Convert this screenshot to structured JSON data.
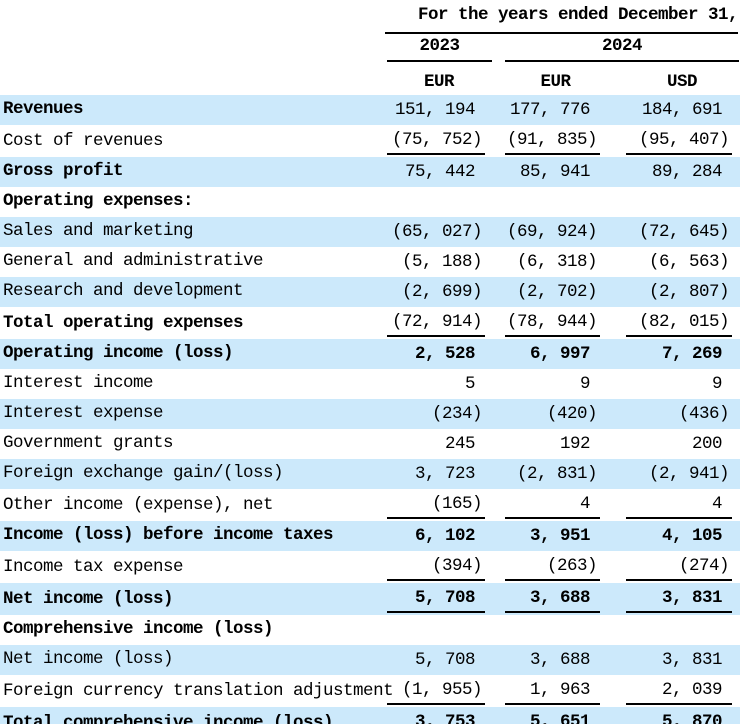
{
  "theme": {
    "stripe_color": "#cce9fb",
    "line_color": "#000000",
    "text_color": "#000000"
  },
  "header": {
    "period": "For the years ended December 31,",
    "years": [
      {
        "label": "2023",
        "span": 1
      },
      {
        "label": "2024",
        "span": 2
      }
    ],
    "currencies": [
      "EUR",
      "EUR",
      "USD"
    ]
  },
  "rows": [
    {
      "label": "Revenues",
      "values": [
        "151, 194",
        "177, 776",
        "184, 691"
      ],
      "bold_label": true,
      "bold_values": false,
      "underline": "none"
    },
    {
      "label": "Cost of revenues",
      "values": [
        "(75, 752)",
        "(91, 835)",
        "(95, 407)"
      ],
      "bold_label": false,
      "bold_values": false,
      "underline": "single"
    },
    {
      "label": "Gross profit",
      "values": [
        "75, 442",
        "85, 941",
        "89, 284"
      ],
      "bold_label": true,
      "bold_values": false,
      "underline": "none"
    },
    {
      "label": "Operating expenses:",
      "values": [
        "",
        "",
        ""
      ],
      "bold_label": true,
      "bold_values": false,
      "underline": "none"
    },
    {
      "label": "Sales and marketing",
      "values": [
        "(65, 027)",
        "(69, 924)",
        "(72, 645)"
      ],
      "bold_label": false,
      "bold_values": false,
      "underline": "none"
    },
    {
      "label": "General and administrative",
      "values": [
        "(5, 188)",
        "(6, 318)",
        "(6, 563)"
      ],
      "bold_label": false,
      "bold_values": false,
      "underline": "none"
    },
    {
      "label": "Research and development",
      "values": [
        "(2, 699)",
        "(2, 702)",
        "(2, 807)"
      ],
      "bold_label": false,
      "bold_values": false,
      "underline": "none"
    },
    {
      "label": "Total operating expenses",
      "values": [
        "(72, 914)",
        "(78, 944)",
        "(82, 015)"
      ],
      "bold_label": true,
      "bold_values": false,
      "underline": "single"
    },
    {
      "label": "Operating income (loss)",
      "values": [
        "2, 528",
        "6, 997",
        "7, 269"
      ],
      "bold_label": true,
      "bold_values": true,
      "underline": "none"
    },
    {
      "label": "Interest income",
      "values": [
        "5",
        "9",
        "9"
      ],
      "bold_label": false,
      "bold_values": false,
      "underline": "none"
    },
    {
      "label": "Interest expense",
      "values": [
        "(234)",
        "(420)",
        "(436)"
      ],
      "bold_label": false,
      "bold_values": false,
      "underline": "none"
    },
    {
      "label": "Government grants",
      "values": [
        "245",
        "192",
        "200"
      ],
      "bold_label": false,
      "bold_values": false,
      "underline": "none"
    },
    {
      "label": "Foreign exchange gain/(loss)",
      "values": [
        "3, 723",
        "(2, 831)",
        "(2, 941)"
      ],
      "bold_label": false,
      "bold_values": false,
      "underline": "none"
    },
    {
      "label": "Other income (expense), net",
      "values": [
        "(165)",
        "4",
        "4"
      ],
      "bold_label": false,
      "bold_values": false,
      "underline": "single"
    },
    {
      "label": "Income (loss) before income taxes",
      "values": [
        "6, 102",
        "3, 951",
        "4, 105"
      ],
      "bold_label": true,
      "bold_values": true,
      "underline": "none"
    },
    {
      "label": "Income tax expense",
      "values": [
        "(394)",
        "(263)",
        "(274)"
      ],
      "bold_label": false,
      "bold_values": false,
      "underline": "single"
    },
    {
      "label": "Net income (loss)",
      "values": [
        "5, 708",
        "3, 688",
        "3, 831"
      ],
      "bold_label": true,
      "bold_values": true,
      "underline": "single"
    },
    {
      "label": "Comprehensive income (loss)",
      "values": [
        "",
        "",
        ""
      ],
      "bold_label": true,
      "bold_values": false,
      "underline": "none"
    },
    {
      "label": "Net income (loss)",
      "values": [
        "5, 708",
        "3, 688",
        "3, 831"
      ],
      "bold_label": false,
      "bold_values": false,
      "underline": "none"
    },
    {
      "label": "Foreign currency translation adjustment",
      "values": [
        "(1, 955)",
        "1, 963",
        "2, 039"
      ],
      "bold_label": false,
      "bold_values": false,
      "underline": "single"
    },
    {
      "label": "Total comprehensive income (loss)",
      "values": [
        "3, 753",
        "5, 651",
        "5, 870"
      ],
      "bold_label": true,
      "bold_values": true,
      "underline": "double"
    }
  ]
}
